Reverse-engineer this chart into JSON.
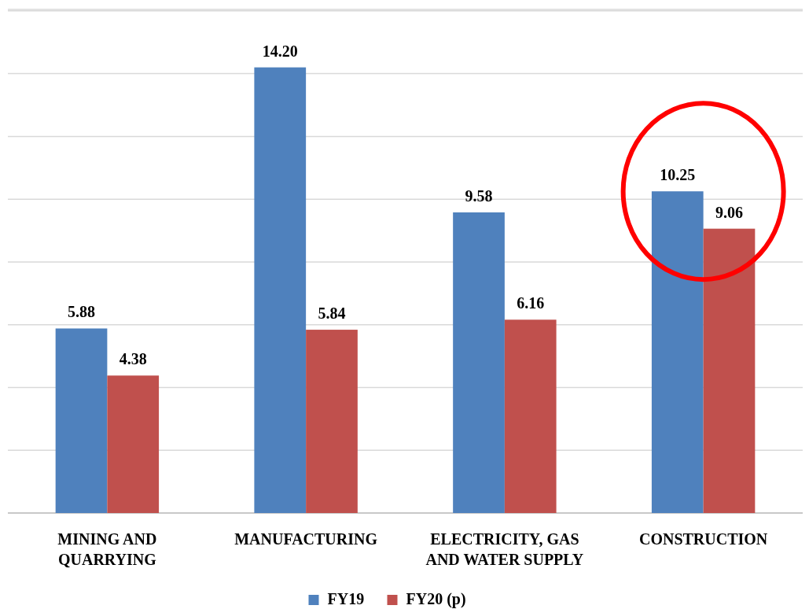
{
  "chart_data": {
    "type": "bar",
    "categories": [
      "MINING AND QUARRYING",
      "MANUFACTURING",
      "ELECTRICITY, GAS AND WATER SUPPLY",
      "CONSTRUCTION"
    ],
    "series": [
      {
        "name": "FY19",
        "color": "#4f81bd",
        "values": [
          5.88,
          14.2,
          9.58,
          10.25
        ],
        "value_labels": [
          "5.88",
          "14.20",
          "9.58",
          "10.25"
        ]
      },
      {
        "name": "FY20 (p)",
        "color": "#c0504d",
        "values": [
          4.38,
          5.84,
          6.16,
          9.06
        ],
        "value_labels": [
          "4.38",
          "5.84",
          "6.16",
          "9.06"
        ]
      }
    ],
    "grid": "y",
    "legend": "bottom",
    "tick_labels": "x"
  }
}
